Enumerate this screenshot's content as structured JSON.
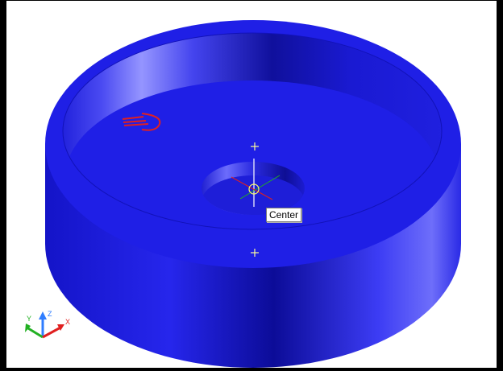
{
  "viewport": {
    "background_color": "#ffffff",
    "solid_color": "#1f1fe6"
  },
  "snap_tooltip": {
    "text": "Center"
  },
  "ucs_icon": {
    "z_label": "Z",
    "y_label": "Y",
    "x_label": "X",
    "z_color": "#2f7dff",
    "y_color": "#22b022",
    "x_color": "#e02020"
  },
  "snap_marker_color": "#ffff66",
  "light_glyph_color": "#e02020"
}
